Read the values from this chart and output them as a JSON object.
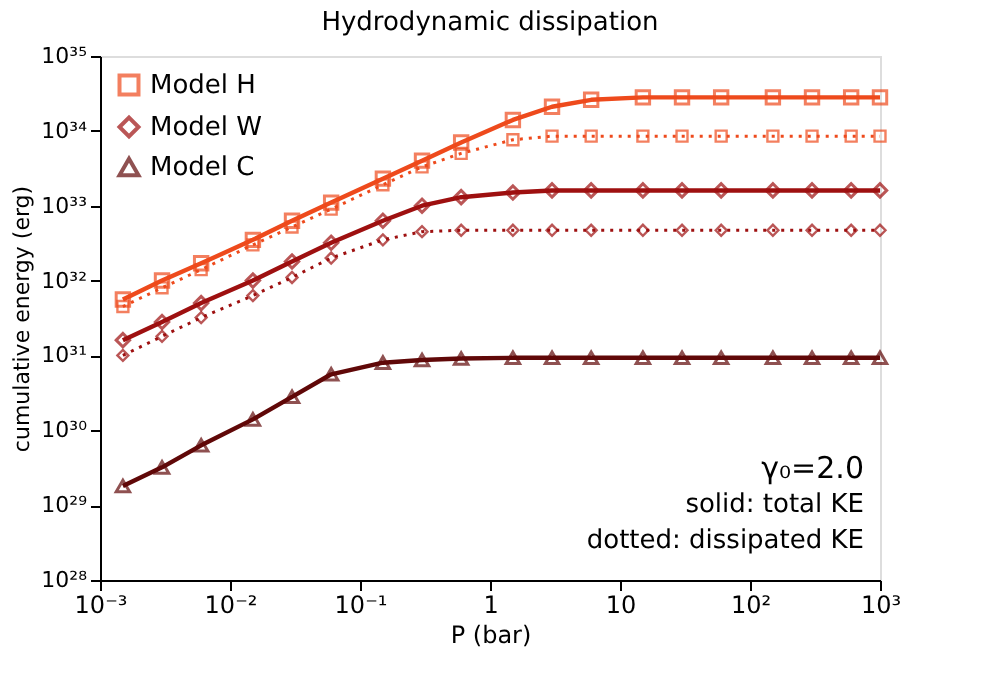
{
  "chart_data": {
    "type": "line",
    "title": "Hydrodynamic dissipation",
    "xlabel": "P (bar)",
    "ylabel": "cumulative energy (erg)",
    "log": "xy",
    "x": [
      0.0015,
      0.003,
      0.006,
      0.015,
      0.03,
      0.06,
      0.15,
      0.3,
      0.6,
      1.5,
      3,
      6,
      15,
      30,
      60,
      150,
      300,
      600,
      1000
    ],
    "series": [
      {
        "name": "Model H",
        "color": "#ee4a1c",
        "marker": "square",
        "line_style": "solid",
        "values": [
          5.6e+31,
          1e+32,
          1.7e+32,
          3.5e+32,
          6.3e+32,
          1.1e+33,
          2.3e+33,
          4e+33,
          7e+33,
          1.4e+34,
          2.1e+34,
          2.6e+34,
          2.8e+34,
          2.8e+34,
          2.8e+34,
          2.8e+34,
          2.8e+34,
          2.8e+34,
          2.8e+34
        ]
      },
      {
        "color": "#ee4a1c",
        "marker": "square",
        "line_style": "dotted",
        "values": [
          4.5e+31,
          8e+31,
          1.4e+32,
          3e+32,
          5.2e+32,
          9e+32,
          1.9e+33,
          3.3e+33,
          5e+33,
          7.6e+33,
          8.5e+33,
          8.5e+33,
          8.5e+33,
          8.5e+33,
          8.5e+33,
          8.5e+33,
          8.5e+33,
          8.5e+33,
          8.5e+33
        ]
      },
      {
        "name": "Model W",
        "color": "#9e1010",
        "marker": "diamond",
        "line_style": "solid",
        "values": [
          1.6e+31,
          2.8e+31,
          5e+31,
          1e+32,
          1.8e+32,
          3.2e+32,
          6.3e+32,
          1e+33,
          1.3e+33,
          1.5e+33,
          1.6e+33,
          1.6e+33,
          1.6e+33,
          1.6e+33,
          1.6e+33,
          1.6e+33,
          1.6e+33,
          1.6e+33,
          1.6e+33
        ]
      },
      {
        "color": "#9e1010",
        "marker": "diamond",
        "line_style": "dotted",
        "values": [
          1e+31,
          1.8e+31,
          3.2e+31,
          6.3e+31,
          1.1e+32,
          2e+32,
          3.5e+32,
          4.5e+32,
          4.7e+32,
          4.7e+32,
          4.7e+32,
          4.7e+32,
          4.7e+32,
          4.7e+32,
          4.7e+32,
          4.7e+32,
          4.7e+32,
          4.7e+32,
          4.7e+32
        ]
      },
      {
        "name": "Model C",
        "color": "#600808",
        "marker": "triangle",
        "line_style": "solid",
        "values": [
          1.8e+29,
          3.2e+29,
          6.3e+29,
          1.4e+30,
          2.8e+30,
          5.6e+30,
          8e+30,
          8.7e+30,
          9.1e+30,
          9.3e+30,
          9.3e+30,
          9.3e+30,
          9.3e+30,
          9.3e+30,
          9.3e+30,
          9.3e+30,
          9.3e+30,
          9.3e+30,
          9.3e+30
        ]
      }
    ],
    "xlim": [
      0.001,
      1000
    ],
    "xticks": [
      {
        "value": 0.001,
        "label": "10⁻³"
      },
      {
        "value": 0.01,
        "label": "10⁻²"
      },
      {
        "value": 0.1,
        "label": "10⁻¹"
      },
      1,
      10,
      {
        "value": 100,
        "label": "10²"
      },
      {
        "value": 1000,
        "label": "10³"
      }
    ],
    "ylim": [
      1e+28,
      1e+35
    ],
    "yticks": [
      {
        "value": 1e+28,
        "label": "10²⁸"
      },
      {
        "value": 1e+29,
        "label": "10²⁹"
      },
      {
        "value": 1e+30,
        "label": "10³⁰"
      },
      {
        "value": 1e+31,
        "label": "10³¹"
      },
      {
        "value": 1e+32,
        "label": "10³²"
      },
      {
        "value": 1e+33,
        "label": "10³³"
      },
      {
        "value": 1e+34,
        "label": "10³⁴"
      },
      {
        "value": 1e+35,
        "label": "10³⁵"
      }
    ],
    "annotations": [
      "γ₀=2.0",
      "solid: total KE",
      "dotted: dissipated KE"
    ],
    "legend": "top left",
    "grid": false
  }
}
